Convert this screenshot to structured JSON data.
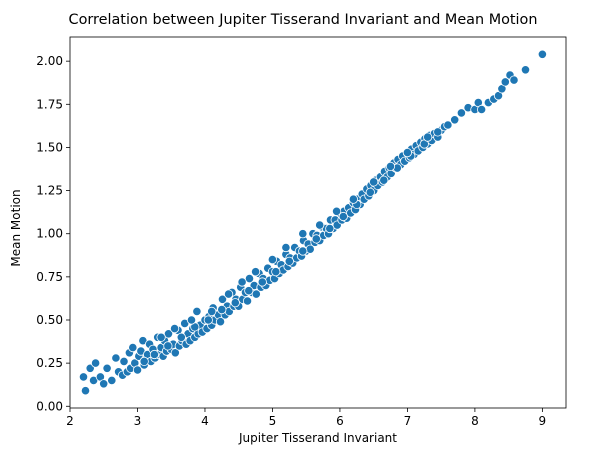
{
  "chart_data": {
    "type": "scatter",
    "title": "Correlation between Jupiter Tisserand Invariant and Mean Motion",
    "xlabel": "Jupiter Tisserand Invariant",
    "ylabel": "Mean Motion",
    "xlim": [
      2.0,
      9.35
    ],
    "ylim": [
      -0.01,
      2.14
    ],
    "xticks": [
      2,
      3,
      4,
      5,
      6,
      7,
      8,
      9
    ],
    "yticks": [
      0.0,
      0.25,
      0.5,
      0.75,
      1.0,
      1.25,
      1.5,
      1.75,
      2.0
    ],
    "xtick_labels": [
      "2",
      "3",
      "4",
      "5",
      "6",
      "7",
      "8",
      "9"
    ],
    "ytick_labels": [
      "0.00",
      "0.25",
      "0.50",
      "0.75",
      "1.00",
      "1.25",
      "1.50",
      "1.75",
      "2.00"
    ],
    "grid": false,
    "point_color": "#1f77b4",
    "point_edge_color": "#ffffff",
    "points": [
      [
        2.2,
        0.17
      ],
      [
        2.23,
        0.09
      ],
      [
        2.3,
        0.22
      ],
      [
        2.35,
        0.15
      ],
      [
        2.38,
        0.25
      ],
      [
        2.45,
        0.17
      ],
      [
        2.5,
        0.13
      ],
      [
        2.55,
        0.22
      ],
      [
        2.62,
        0.15
      ],
      [
        2.68,
        0.28
      ],
      [
        2.72,
        0.2
      ],
      [
        2.78,
        0.18
      ],
      [
        2.8,
        0.26
      ],
      [
        2.85,
        0.2
      ],
      [
        2.88,
        0.31
      ],
      [
        2.9,
        0.22
      ],
      [
        2.93,
        0.34
      ],
      [
        2.96,
        0.25
      ],
      [
        3.0,
        0.21
      ],
      [
        3.02,
        0.29
      ],
      [
        3.05,
        0.32
      ],
      [
        3.08,
        0.38
      ],
      [
        3.1,
        0.24
      ],
      [
        3.12,
        0.27
      ],
      [
        3.15,
        0.3
      ],
      [
        3.18,
        0.36
      ],
      [
        3.2,
        0.26
      ],
      [
        3.23,
        0.33
      ],
      [
        3.26,
        0.28
      ],
      [
        3.3,
        0.4
      ],
      [
        3.32,
        0.3
      ],
      [
        3.35,
        0.34
      ],
      [
        3.38,
        0.29
      ],
      [
        3.4,
        0.38
      ],
      [
        3.43,
        0.32
      ],
      [
        3.46,
        0.42
      ],
      [
        3.5,
        0.33
      ],
      [
        3.53,
        0.36
      ],
      [
        3.56,
        0.31
      ],
      [
        3.6,
        0.44
      ],
      [
        3.62,
        0.35
      ],
      [
        3.66,
        0.38
      ],
      [
        3.7,
        0.48
      ],
      [
        3.72,
        0.36
      ],
      [
        3.75,
        0.42
      ],
      [
        3.78,
        0.38
      ],
      [
        3.82,
        0.45
      ],
      [
        3.85,
        0.4
      ],
      [
        3.88,
        0.55
      ],
      [
        3.9,
        0.42
      ],
      [
        3.93,
        0.47
      ],
      [
        3.96,
        0.43
      ],
      [
        4.0,
        0.5
      ],
      [
        4.03,
        0.45
      ],
      [
        4.06,
        0.52
      ],
      [
        4.1,
        0.47
      ],
      [
        4.12,
        0.57
      ],
      [
        4.15,
        0.5
      ],
      [
        4.2,
        0.53
      ],
      [
        4.23,
        0.49
      ],
      [
        4.26,
        0.62
      ],
      [
        4.3,
        0.53
      ],
      [
        4.33,
        0.58
      ],
      [
        4.36,
        0.55
      ],
      [
        4.4,
        0.66
      ],
      [
        4.43,
        0.58
      ],
      [
        4.46,
        0.62
      ],
      [
        4.5,
        0.58
      ],
      [
        4.53,
        0.69
      ],
      [
        4.56,
        0.62
      ],
      [
        4.6,
        0.66
      ],
      [
        4.63,
        0.61
      ],
      [
        4.66,
        0.74
      ],
      [
        4.7,
        0.66
      ],
      [
        4.73,
        0.7
      ],
      [
        4.76,
        0.65
      ],
      [
        4.8,
        0.77
      ],
      [
        4.83,
        0.69
      ],
      [
        4.86,
        0.74
      ],
      [
        4.9,
        0.7
      ],
      [
        4.93,
        0.8
      ],
      [
        4.96,
        0.73
      ],
      [
        5.0,
        0.78
      ],
      [
        5.03,
        0.74
      ],
      [
        5.06,
        0.84
      ],
      [
        5.1,
        0.77
      ],
      [
        5.13,
        0.82
      ],
      [
        5.16,
        0.79
      ],
      [
        5.2,
        0.88
      ],
      [
        5.23,
        0.81
      ],
      [
        5.26,
        0.86
      ],
      [
        5.3,
        0.83
      ],
      [
        5.33,
        0.92
      ],
      [
        5.36,
        0.86
      ],
      [
        5.4,
        0.9
      ],
      [
        5.43,
        0.87
      ],
      [
        5.46,
        0.96
      ],
      [
        5.5,
        0.9
      ],
      [
        5.53,
        0.94
      ],
      [
        5.56,
        0.91
      ],
      [
        5.6,
        1.0
      ],
      [
        5.63,
        0.95
      ],
      [
        5.66,
        0.99
      ],
      [
        5.7,
        0.96
      ],
      [
        5.73,
        1.04
      ],
      [
        5.76,
        0.99
      ],
      [
        5.8,
        1.03
      ],
      [
        5.83,
        1.0
      ],
      [
        5.86,
        1.08
      ],
      [
        5.9,
        1.03
      ],
      [
        5.93,
        1.08
      ],
      [
        5.96,
        1.05
      ],
      [
        6.0,
        1.12
      ],
      [
        6.03,
        1.08
      ],
      [
        6.06,
        1.13
      ],
      [
        6.1,
        1.09
      ],
      [
        6.13,
        1.15
      ],
      [
        6.16,
        1.12
      ],
      [
        6.2,
        1.18
      ],
      [
        6.23,
        1.14
      ],
      [
        6.26,
        1.2
      ],
      [
        6.3,
        1.17
      ],
      [
        6.33,
        1.23
      ],
      [
        6.36,
        1.2
      ],
      [
        6.4,
        1.26
      ],
      [
        6.43,
        1.22
      ],
      [
        6.46,
        1.28
      ],
      [
        6.5,
        1.25
      ],
      [
        6.53,
        1.31
      ],
      [
        6.56,
        1.28
      ],
      [
        6.6,
        1.33
      ],
      [
        6.63,
        1.3
      ],
      [
        6.66,
        1.36
      ],
      [
        6.7,
        1.33
      ],
      [
        6.73,
        1.38
      ],
      [
        6.76,
        1.35
      ],
      [
        6.8,
        1.41
      ],
      [
        6.83,
        1.38
      ],
      [
        6.86,
        1.43
      ],
      [
        6.9,
        1.4
      ],
      [
        6.93,
        1.45
      ],
      [
        6.96,
        1.42
      ],
      [
        7.0,
        1.47
      ],
      [
        7.03,
        1.44
      ],
      [
        7.06,
        1.49
      ],
      [
        7.1,
        1.46
      ],
      [
        7.13,
        1.51
      ],
      [
        7.16,
        1.48
      ],
      [
        7.2,
        1.53
      ],
      [
        7.23,
        1.5
      ],
      [
        7.26,
        1.55
      ],
      [
        7.3,
        1.52
      ],
      [
        7.33,
        1.57
      ],
      [
        7.36,
        1.54
      ],
      [
        7.4,
        1.58
      ],
      [
        7.45,
        1.56
      ],
      [
        7.5,
        1.6
      ],
      [
        7.55,
        1.62
      ],
      [
        7.6,
        1.63
      ],
      [
        7.7,
        1.66
      ],
      [
        7.8,
        1.7
      ],
      [
        7.9,
        1.73
      ],
      [
        8.0,
        1.72
      ],
      [
        8.05,
        1.76
      ],
      [
        8.1,
        1.72
      ],
      [
        8.2,
        1.76
      ],
      [
        8.28,
        1.78
      ],
      [
        8.35,
        1.8
      ],
      [
        8.4,
        1.84
      ],
      [
        8.45,
        1.88
      ],
      [
        8.52,
        1.92
      ],
      [
        8.58,
        1.89
      ],
      [
        8.75,
        1.95
      ],
      [
        9.0,
        2.04
      ],
      [
        3.1,
        0.26
      ],
      [
        3.25,
        0.3
      ],
      [
        3.45,
        0.35
      ],
      [
        3.65,
        0.4
      ],
      [
        3.85,
        0.46
      ],
      [
        4.05,
        0.5
      ],
      [
        4.25,
        0.56
      ],
      [
        4.45,
        0.6
      ],
      [
        4.65,
        0.67
      ],
      [
        4.85,
        0.72
      ],
      [
        5.05,
        0.78
      ],
      [
        5.25,
        0.84
      ],
      [
        5.45,
        0.9
      ],
      [
        5.65,
        0.97
      ],
      [
        5.85,
        1.03
      ],
      [
        6.05,
        1.1
      ],
      [
        6.25,
        1.17
      ],
      [
        6.45,
        1.24
      ],
      [
        6.65,
        1.31
      ],
      [
        6.85,
        1.38
      ],
      [
        7.05,
        1.45
      ],
      [
        7.25,
        1.52
      ],
      [
        7.45,
        1.59
      ],
      [
        3.35,
        0.4
      ],
      [
        3.55,
        0.45
      ],
      [
        3.8,
        0.5
      ],
      [
        4.1,
        0.55
      ],
      [
        4.35,
        0.65
      ],
      [
        4.55,
        0.72
      ],
      [
        4.75,
        0.78
      ],
      [
        5.0,
        0.85
      ],
      [
        5.2,
        0.92
      ],
      [
        5.45,
        1.0
      ],
      [
        5.7,
        1.05
      ],
      [
        5.95,
        1.13
      ],
      [
        6.2,
        1.2
      ],
      [
        6.5,
        1.3
      ],
      [
        6.75,
        1.39
      ],
      [
        7.0,
        1.47
      ],
      [
        7.3,
        1.56
      ]
    ]
  }
}
